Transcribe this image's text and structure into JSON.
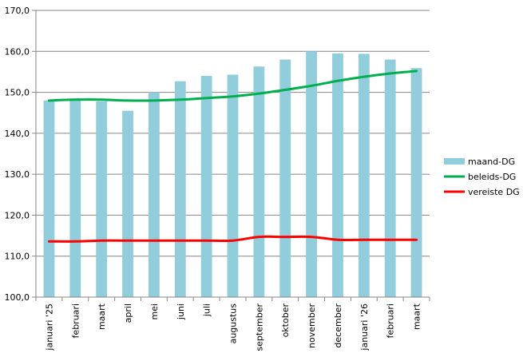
{
  "chart_data": {
    "type": "bar",
    "categories": [
      "januari '25",
      "februari",
      "maart",
      "april",
      "mei",
      "juni",
      "juli",
      "augustus",
      "september",
      "oktober",
      "november",
      "december",
      "januari '26",
      "februari",
      "maart"
    ],
    "series": [
      {
        "name": "maand-DG",
        "type": "bar",
        "color": "#92cddc",
        "values": [
          148.0,
          148.5,
          147.8,
          145.5,
          150.0,
          152.7,
          154.0,
          154.3,
          156.3,
          158.0,
          160.0,
          159.5,
          159.4,
          158.0,
          155.9
        ]
      },
      {
        "name": "beleids-DG",
        "type": "line",
        "color": "#00b050",
        "values": [
          148.0,
          148.2,
          148.2,
          148.0,
          148.0,
          148.2,
          148.6,
          149.0,
          149.7,
          150.6,
          151.6,
          152.8,
          153.8,
          154.6,
          155.2
        ]
      },
      {
        "name": "vereiste DG",
        "type": "line",
        "color": "#ff0000",
        "values": [
          113.6,
          113.6,
          113.8,
          113.8,
          113.8,
          113.8,
          113.8,
          113.8,
          114.7,
          114.7,
          114.7,
          114.0,
          114.0,
          114.0,
          114.0
        ]
      }
    ],
    "yticks": [
      "100,0",
      "110,0",
      "120,0",
      "130,0",
      "140,0",
      "150,0",
      "160,0",
      "170,0"
    ],
    "ylim": [
      100,
      170
    ],
    "grid": true,
    "legend_position": "right",
    "title": "",
    "xlabel": "",
    "ylabel": ""
  }
}
